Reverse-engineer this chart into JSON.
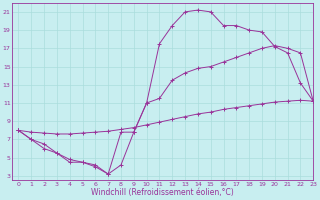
{
  "xlabel": "Windchill (Refroidissement éolien,°C)",
  "bg_color": "#c8eef0",
  "grid_color": "#aadddd",
  "line_color": "#993399",
  "line1_x": [
    0,
    1,
    2,
    3,
    4,
    5,
    6,
    7,
    8,
    9,
    10,
    11,
    12,
    13,
    14,
    15,
    16,
    17,
    18,
    19,
    20,
    21,
    22,
    23
  ],
  "line1_y": [
    8.0,
    7.0,
    6.5,
    5.5,
    4.5,
    4.5,
    4.0,
    3.2,
    7.8,
    7.8,
    11.0,
    17.5,
    19.5,
    21.0,
    21.2,
    21.0,
    19.5,
    19.5,
    19.0,
    18.8,
    17.2,
    16.5,
    13.2,
    11.2
  ],
  "line2_x": [
    0,
    1,
    2,
    3,
    4,
    5,
    6,
    7,
    8,
    9,
    10,
    11,
    12,
    13,
    14,
    15,
    16,
    17,
    18,
    19,
    20,
    21,
    22,
    23
  ],
  "line2_y": [
    8.0,
    7.8,
    7.7,
    7.6,
    7.6,
    7.7,
    7.8,
    7.9,
    8.1,
    8.3,
    8.6,
    8.9,
    9.2,
    9.5,
    9.8,
    10.0,
    10.3,
    10.5,
    10.7,
    10.9,
    11.1,
    11.2,
    11.3,
    11.2
  ],
  "line3_x": [
    0,
    1,
    2,
    3,
    4,
    5,
    6,
    7,
    8,
    9,
    10,
    11,
    12,
    13,
    14,
    15,
    16,
    17,
    18,
    19,
    20,
    21,
    22,
    23
  ],
  "line3_y": [
    8.0,
    7.0,
    6.0,
    5.5,
    4.8,
    4.5,
    4.2,
    3.2,
    4.2,
    7.8,
    11.0,
    11.5,
    13.5,
    14.3,
    14.8,
    15.0,
    15.5,
    16.0,
    16.5,
    17.0,
    17.3,
    17.0,
    16.5,
    11.2
  ],
  "ylim": [
    2.5,
    22
  ],
  "xlim": [
    -0.5,
    23
  ],
  "yticks": [
    3,
    5,
    7,
    9,
    11,
    13,
    15,
    17,
    19,
    21
  ],
  "xticks": [
    0,
    1,
    2,
    3,
    4,
    5,
    6,
    7,
    8,
    9,
    10,
    11,
    12,
    13,
    14,
    15,
    16,
    17,
    18,
    19,
    20,
    21,
    22,
    23
  ],
  "xtick_labels": [
    "0",
    "1",
    "2",
    "3",
    "4",
    "5",
    "6",
    "7",
    "8",
    "9",
    "10",
    "11",
    "12",
    "13",
    "14",
    "15",
    "16",
    "17",
    "18",
    "19",
    "20",
    "21",
    "22",
    "23"
  ],
  "ytick_labels": [
    "3",
    "5",
    "7",
    "9",
    "11",
    "13",
    "15",
    "17",
    "19",
    "21"
  ],
  "tick_fontsize": 4.5,
  "xlabel_fontsize": 5.5,
  "marker_size": 2.5,
  "line_width": 0.7
}
